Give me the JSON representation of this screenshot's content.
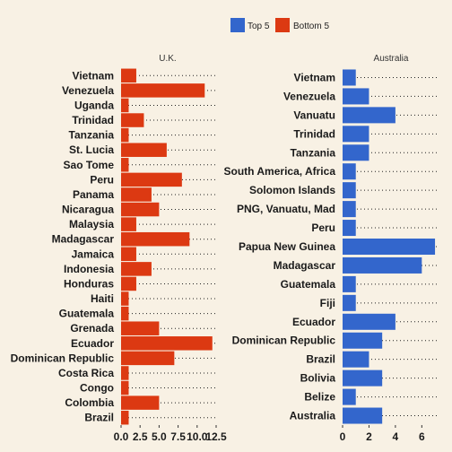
{
  "chart_data": {
    "type": "bar",
    "orientation": "horizontal",
    "legend": {
      "position": "top",
      "items": [
        {
          "label": "Top 5",
          "color": "#3366cc"
        },
        {
          "label": "Bottom 5",
          "color": "#dc3912"
        }
      ]
    },
    "panels": [
      {
        "title": "U.K.",
        "color": "#dc3912",
        "xlim": [
          0,
          12.5
        ],
        "ticks": [
          0,
          2.5,
          5,
          7.5,
          10,
          12.5
        ],
        "tick_labels": [
          "0.0",
          "2.5",
          "5.0",
          "7.5",
          "10.0",
          "12.5"
        ],
        "categories": [
          "Vietnam",
          "Venezuela",
          "Uganda",
          "Trinidad",
          "Tanzania",
          "St. Lucia",
          "Sao Tome",
          "Peru",
          "Panama",
          "Nicaragua",
          "Malaysia",
          "Madagascar",
          "Jamaica",
          "Indonesia",
          "Honduras",
          "Haiti",
          "Guatemala",
          "Grenada",
          "Ecuador",
          "Dominican Republic",
          "Costa Rica",
          "Congo",
          "Colombia",
          "Brazil"
        ],
        "values": [
          2,
          11,
          1,
          3,
          1,
          6,
          1,
          8,
          4,
          5,
          2,
          9,
          2,
          4,
          2,
          1,
          1,
          5,
          12,
          7,
          1,
          1,
          5,
          1
        ]
      },
      {
        "title": "Australia",
        "color": "#3366cc",
        "xlim": [
          0,
          7.2
        ],
        "ticks": [
          0,
          2,
          4,
          6
        ],
        "tick_labels": [
          "0",
          "2",
          "4",
          "6"
        ],
        "categories": [
          "Vietnam",
          "Venezuela",
          "Vanuatu",
          "Trinidad",
          "Tanzania",
          "South America, Africa",
          "Solomon Islands",
          "PNG, Vanuatu, Mad",
          "Peru",
          "Papua New Guinea",
          "Madagascar",
          "Guatemala",
          "Fiji",
          "Ecuador",
          "Dominican Republic",
          "Brazil",
          "Bolivia",
          "Belize",
          "Australia"
        ],
        "values": [
          1,
          2,
          4,
          2,
          2,
          1,
          1,
          1,
          1,
          7,
          6,
          1,
          1,
          4,
          3,
          2,
          3,
          1,
          3
        ]
      }
    ]
  }
}
